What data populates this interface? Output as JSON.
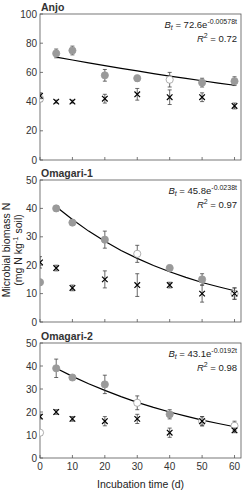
{
  "chart_data": [
    {
      "type": "scatter",
      "title": "Anjo",
      "xlim": [
        0,
        62
      ],
      "xticks": [
        0,
        10,
        20,
        30,
        40,
        50,
        60
      ],
      "ylim": [
        0,
        100
      ],
      "yticks": [
        0,
        20,
        40,
        60,
        80,
        100
      ],
      "tick_labels": "y",
      "equation": {
        "lhs": "B",
        "lhs_sub": "t",
        "rhs": " = 72.6e",
        "exponent": "-0.00578t"
      },
      "r2": {
        "lhs": "R",
        "sup": "2",
        "rhs": " = 0.72"
      },
      "series": [
        {
          "type": "line",
          "color": "#000000",
          "x": [
            5,
            10,
            15,
            20,
            25,
            30,
            35,
            40,
            45,
            50,
            55,
            60
          ],
          "values": [
            70.5,
            68.5,
            66.5,
            64.6,
            62.8,
            61.0,
            59.2,
            57.5,
            55.9,
            54.3,
            52.7,
            51.2
          ]
        },
        {
          "type": "scatter",
          "marker": "circle",
          "x": [
            0,
            5,
            10,
            20,
            30,
            40,
            50,
            60
          ],
          "values": [
            42,
            73,
            75,
            58,
            56,
            55,
            53,
            54
          ],
          "errors": [
            2,
            3,
            3,
            4,
            2,
            5,
            3,
            3
          ],
          "colors": [
            "#ffffff",
            "#9a9a9a",
            "#9a9a9a",
            "#9a9a9a",
            "#9a9a9a",
            "#ffffff",
            "#9a9a9a",
            "#9a9a9a"
          ]
        },
        {
          "type": "scatter",
          "marker": "cross",
          "color": "#000000",
          "x": [
            0,
            5,
            10,
            20,
            30,
            40,
            50,
            60
          ],
          "values": [
            44,
            40,
            40,
            42,
            45,
            43,
            43,
            37
          ],
          "errors": [
            2,
            1,
            1,
            3,
            4,
            5,
            3,
            2
          ]
        }
      ]
    },
    {
      "type": "scatter",
      "title": "Omagari-1",
      "xlim": [
        0,
        62
      ],
      "xticks": [
        0,
        10,
        20,
        30,
        40,
        50,
        60
      ],
      "ylim": [
        0,
        50
      ],
      "yticks": [
        0,
        10,
        20,
        30,
        40,
        50
      ],
      "tick_labels": "y",
      "y_label": {
        "line1": "Microbial biomass N",
        "line2_before": "(mg N kg",
        "line2_sup": "-1",
        "line2_after": " soil)"
      },
      "equation": {
        "lhs": "B",
        "lhs_sub": "t",
        "rhs": " = 45.8e",
        "exponent": "-0.0238t"
      },
      "r2": {
        "lhs": "R",
        "sup": "2",
        "rhs": " = 0.97"
      },
      "series": [
        {
          "type": "line",
          "color": "#000000",
          "x": [
            5,
            10,
            15,
            20,
            25,
            30,
            35,
            40,
            45,
            50,
            55,
            60
          ],
          "values": [
            40.6,
            36.1,
            32.0,
            28.4,
            25.2,
            22.4,
            19.9,
            17.7,
            15.7,
            13.9,
            12.4,
            11.0
          ]
        },
        {
          "type": "scatter",
          "marker": "circle",
          "x": [
            0,
            5,
            10,
            20,
            30,
            40,
            50,
            60
          ],
          "values": [
            14,
            40,
            35,
            29,
            24,
            19,
            15,
            10
          ],
          "errors": [
            1,
            1,
            1,
            3,
            3,
            1,
            2,
            2
          ],
          "colors": [
            "#9a9a9a",
            "#9a9a9a",
            "#9a9a9a",
            "#9a9a9a",
            "#ffffff",
            "#9a9a9a",
            "#9a9a9a",
            "#ffffff"
          ]
        },
        {
          "type": "scatter",
          "marker": "cross",
          "color": "#000000",
          "x": [
            0,
            5,
            10,
            20,
            30,
            40,
            50,
            60
          ],
          "values": [
            21,
            19,
            12,
            15,
            13,
            13,
            10,
            10
          ],
          "errors": [
            2,
            1,
            1,
            3,
            4,
            1,
            3,
            2
          ]
        }
      ]
    },
    {
      "type": "scatter",
      "title": "Omagari-2",
      "xlim": [
        0,
        62
      ],
      "xticks": [
        0,
        10,
        20,
        30,
        40,
        50,
        60
      ],
      "ylim": [
        0,
        50
      ],
      "yticks": [
        0,
        10,
        20,
        30,
        40,
        50
      ],
      "x_label": "Incubation time (d)",
      "equation": {
        "lhs": "B",
        "lhs_sub": "t",
        "rhs": " = 43.1e",
        "exponent": "-0.0192t"
      },
      "r2": {
        "lhs": "R",
        "sup": "2",
        "rhs": " = 0.98"
      },
      "series": [
        {
          "type": "line",
          "color": "#000000",
          "x": [
            5,
            10,
            15,
            20,
            25,
            30,
            35,
            40,
            45,
            50,
            55,
            60
          ],
          "values": [
            39.0,
            35.5,
            32.3,
            29.4,
            26.7,
            24.2,
            22.0,
            20.0,
            18.2,
            16.5,
            15.0,
            13.6
          ]
        },
        {
          "type": "scatter",
          "marker": "circle",
          "x": [
            0,
            5,
            10,
            20,
            30,
            40,
            50,
            60
          ],
          "values": [
            11,
            39,
            35,
            32,
            24,
            19,
            16,
            14
          ],
          "errors": [
            1,
            4,
            1,
            4,
            3,
            2,
            2,
            2
          ],
          "colors": [
            "#ffffff",
            "#9a9a9a",
            "#9a9a9a",
            "#9a9a9a",
            "#ffffff",
            "#9a9a9a",
            "#ffffff",
            "#ffffff"
          ]
        },
        {
          "type": "scatter",
          "marker": "cross",
          "color": "#000000",
          "x": [
            0,
            5,
            10,
            20,
            30,
            40,
            50,
            60
          ],
          "values": [
            18,
            20,
            17,
            16,
            17,
            11,
            16,
            12
          ],
          "errors": [
            1,
            1,
            1,
            2,
            2,
            2,
            2,
            1
          ]
        }
      ]
    }
  ]
}
